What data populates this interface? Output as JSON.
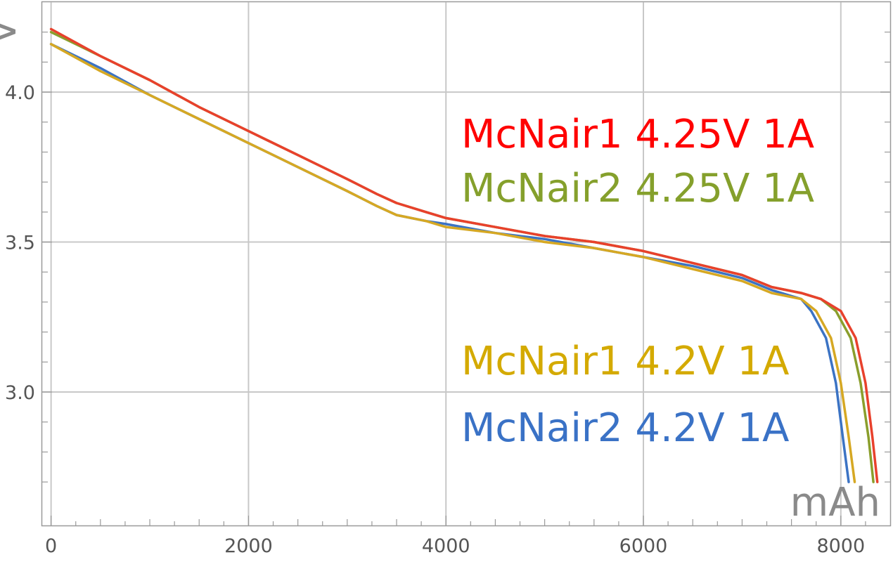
{
  "chart_data": {
    "type": "line",
    "title": "",
    "xlabel": "mAh",
    "ylabel": "V",
    "xlim": [
      -90,
      8500
    ],
    "ylim": [
      2.555,
      4.3
    ],
    "x_ticks": [
      0,
      2000,
      4000,
      6000,
      8000
    ],
    "x_tick_labels": [
      "0",
      "2000",
      "4000",
      "6000",
      "8000"
    ],
    "y_ticks": [
      3.0,
      3.5,
      4.0
    ],
    "y_tick_labels": [
      "3.0",
      "3.5",
      "4.0"
    ],
    "grid": true,
    "legend_position": "right",
    "series": [
      {
        "name": "McNair1 4.25V 1A",
        "color": "#e8412c",
        "points": [
          [
            0,
            4.21
          ],
          [
            500,
            4.12
          ],
          [
            1000,
            4.04
          ],
          [
            1500,
            3.95
          ],
          [
            2000,
            3.87
          ],
          [
            2500,
            3.79
          ],
          [
            3000,
            3.71
          ],
          [
            3300,
            3.66
          ],
          [
            3500,
            3.63
          ],
          [
            3800,
            3.6
          ],
          [
            4000,
            3.58
          ],
          [
            4500,
            3.55
          ],
          [
            5000,
            3.52
          ],
          [
            5500,
            3.5
          ],
          [
            6000,
            3.47
          ],
          [
            6500,
            3.43
          ],
          [
            7000,
            3.39
          ],
          [
            7300,
            3.35
          ],
          [
            7600,
            3.33
          ],
          [
            7800,
            3.31
          ],
          [
            8000,
            3.27
          ],
          [
            8150,
            3.18
          ],
          [
            8250,
            3.03
          ],
          [
            8320,
            2.85
          ],
          [
            8370,
            2.7
          ]
        ]
      },
      {
        "name": "McNair2 4.25V 1A",
        "color": "#8a9e2c",
        "points": [
          [
            0,
            4.2
          ],
          [
            500,
            4.12
          ],
          [
            1000,
            4.04
          ],
          [
            1500,
            3.95
          ],
          [
            2000,
            3.87
          ],
          [
            2500,
            3.79
          ],
          [
            3000,
            3.71
          ],
          [
            3300,
            3.66
          ],
          [
            3500,
            3.63
          ],
          [
            3800,
            3.6
          ],
          [
            4000,
            3.58
          ],
          [
            4500,
            3.55
          ],
          [
            5000,
            3.52
          ],
          [
            5500,
            3.5
          ],
          [
            6000,
            3.47
          ],
          [
            6500,
            3.43
          ],
          [
            7000,
            3.39
          ],
          [
            7300,
            3.35
          ],
          [
            7600,
            3.33
          ],
          [
            7800,
            3.31
          ],
          [
            7950,
            3.27
          ],
          [
            8100,
            3.18
          ],
          [
            8200,
            3.03
          ],
          [
            8280,
            2.85
          ],
          [
            8330,
            2.7
          ]
        ]
      },
      {
        "name": "McNair1 4.2V 1A",
        "color": "#d6a823",
        "points": [
          [
            0,
            4.16
          ],
          [
            500,
            4.07
          ],
          [
            1000,
            3.99
          ],
          [
            1500,
            3.91
          ],
          [
            2000,
            3.83
          ],
          [
            2500,
            3.75
          ],
          [
            3000,
            3.67
          ],
          [
            3300,
            3.62
          ],
          [
            3500,
            3.59
          ],
          [
            3800,
            3.57
          ],
          [
            4000,
            3.55
          ],
          [
            4500,
            3.53
          ],
          [
            5000,
            3.5
          ],
          [
            5500,
            3.48
          ],
          [
            6000,
            3.45
          ],
          [
            6500,
            3.41
          ],
          [
            7000,
            3.37
          ],
          [
            7300,
            3.33
          ],
          [
            7600,
            3.31
          ],
          [
            7750,
            3.27
          ],
          [
            7900,
            3.18
          ],
          [
            8000,
            3.03
          ],
          [
            8080,
            2.85
          ],
          [
            8140,
            2.7
          ]
        ]
      },
      {
        "name": "McNair2 4.2V 1A",
        "color": "#3b73c4",
        "points": [
          [
            0,
            4.16
          ],
          [
            500,
            4.08
          ],
          [
            1000,
            3.99
          ],
          [
            1500,
            3.91
          ],
          [
            2000,
            3.83
          ],
          [
            2500,
            3.75
          ],
          [
            3000,
            3.67
          ],
          [
            3300,
            3.62
          ],
          [
            3500,
            3.59
          ],
          [
            3800,
            3.57
          ],
          [
            4000,
            3.56
          ],
          [
            4500,
            3.53
          ],
          [
            5000,
            3.51
          ],
          [
            5500,
            3.48
          ],
          [
            6000,
            3.45
          ],
          [
            6500,
            3.42
          ],
          [
            7000,
            3.38
          ],
          [
            7300,
            3.34
          ],
          [
            7600,
            3.31
          ],
          [
            7700,
            3.27
          ],
          [
            7850,
            3.18
          ],
          [
            7950,
            3.03
          ],
          [
            8020,
            2.85
          ],
          [
            8080,
            2.7
          ]
        ]
      }
    ]
  }
}
